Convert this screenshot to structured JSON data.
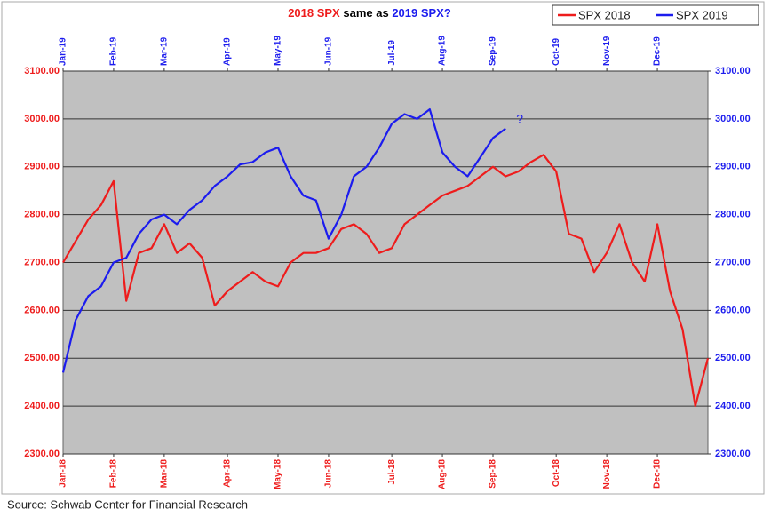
{
  "chart_data": {
    "type": "line",
    "title": [
      "2018 SPX",
      "same as",
      "2019 SPX?"
    ],
    "source": "Source: Schwab Center for Financial Research",
    "annotation": "?",
    "categories": [
      "Jan-18",
      null,
      null,
      null,
      "Feb-18",
      null,
      null,
      null,
      "Mar-18",
      null,
      null,
      null,
      null,
      "Apr-18",
      null,
      null,
      null,
      "May-18",
      null,
      null,
      null,
      "Jun-18",
      null,
      null,
      null,
      null,
      "Jul-18",
      null,
      null,
      null,
      "Aug-18",
      null,
      null,
      null,
      "Sep-18",
      null,
      null,
      null,
      null,
      "Oct-18",
      null,
      null,
      null,
      "Nov-18",
      null,
      null,
      null,
      "Dec-18",
      null,
      null,
      null,
      null
    ],
    "x2_categories": [
      "Jan-19",
      null,
      null,
      null,
      "Feb-19",
      null,
      null,
      null,
      "Mar-19",
      null,
      null,
      null,
      null,
      "Apr-19",
      null,
      null,
      null,
      "May-19",
      null,
      null,
      null,
      "Jun-19",
      null,
      null,
      null,
      null,
      "Jul-19",
      null,
      null,
      null,
      "Aug-19",
      null,
      null,
      null,
      "Sep-19",
      null,
      null,
      null,
      null,
      "Oct-19",
      null,
      null,
      null,
      "Nov-19",
      null,
      null,
      null,
      "Dec-19",
      null,
      null,
      null,
      null
    ],
    "series": [
      {
        "name": "SPX 2018",
        "color": "#ee1c1c",
        "values": [
          2700,
          2745,
          2790,
          2820,
          2870,
          2620,
          2720,
          2730,
          2780,
          2720,
          2740,
          2710,
          2610,
          2640,
          2660,
          2680,
          2660,
          2650,
          2700,
          2720,
          2720,
          2730,
          2770,
          2780,
          2760,
          2720,
          2730,
          2780,
          2800,
          2820,
          2840,
          2850,
          2860,
          2880,
          2900,
          2880,
          2890,
          2910,
          2925,
          2890,
          2760,
          2750,
          2680,
          2720,
          2780,
          2700,
          2660,
          2780,
          2640,
          2560,
          2400,
          2500
        ]
      },
      {
        "name": "SPX 2019",
        "color": "#1c1cee",
        "axis": "y2",
        "values": [
          2470,
          2580,
          2630,
          2650,
          2700,
          2710,
          2760,
          2790,
          2800,
          2780,
          2810,
          2830,
          2860,
          2880,
          2905,
          2910,
          2930,
          2940,
          2880,
          2840,
          2830,
          2750,
          2800,
          2880,
          2900,
          2940,
          2990,
          3010,
          3000,
          3020,
          2930,
          2900,
          2880,
          2920,
          2960,
          2980,
          null,
          null,
          null,
          null,
          null,
          null,
          null,
          null,
          null,
          null,
          null,
          null,
          null,
          null,
          null,
          null
        ]
      }
    ],
    "ylim": [
      2300,
      3100
    ],
    "yticks": [
      {
        "value": 2300,
        "label": "2300.00"
      },
      {
        "value": 2400,
        "label": "2400.00"
      },
      {
        "value": 2500,
        "label": "2500.00"
      },
      {
        "value": 2600,
        "label": "2600.00"
      },
      {
        "value": 2700,
        "label": "2700.00"
      },
      {
        "value": 2800,
        "label": "2800.00"
      },
      {
        "value": 2900,
        "label": "2900.00"
      },
      {
        "value": 3000,
        "label": "3000.00"
      },
      {
        "value": 3100,
        "label": "3100.00"
      }
    ],
    "y2lim": [
      2300,
      3100
    ],
    "y2ticks": [
      {
        "value": 2300,
        "label": "2300.00"
      },
      {
        "value": 2400,
        "label": "2400.00"
      },
      {
        "value": 2500,
        "label": "2500.00"
      },
      {
        "value": 2600,
        "label": "2600.00"
      },
      {
        "value": 2700,
        "label": "2700.00"
      },
      {
        "value": 2800,
        "label": "2800.00"
      },
      {
        "value": 2900,
        "label": "2900.00"
      },
      {
        "value": 3000,
        "label": "3000.00"
      },
      {
        "value": 3100,
        "label": "3100.00"
      }
    ],
    "grid": true,
    "legend": "top-right"
  }
}
